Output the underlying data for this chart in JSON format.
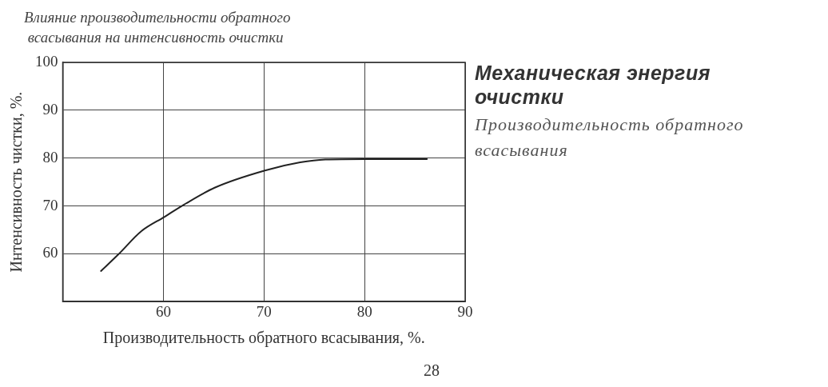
{
  "chart_data": {
    "type": "line",
    "title": "Влияние производительности обратного\n всасывания на интенсивность очистки",
    "xlabel": "Производительность обратного всасывания, %.",
    "ylabel": "Интенсивность чистки, %.",
    "x": [
      53.8,
      55.5,
      57.8,
      60.1,
      62,
      65.1,
      70.1,
      73.6,
      76.1,
      80,
      86.2
    ],
    "series": [
      {
        "color": "#222222",
        "values": [
          56.4,
          59.8,
          64.7,
          67.7,
          70.2,
          73.8,
          77.4,
          79.1,
          79.7,
          79.8,
          79.8
        ]
      }
    ],
    "xlim": [
      50,
      90
    ],
    "xticks": [
      60,
      70,
      80,
      90
    ],
    "ylim": [
      50,
      100
    ],
    "yticks": [
      60,
      70,
      80,
      90,
      100
    ],
    "grid": true,
    "legend": false,
    "marker": "none",
    "line_style": "solid",
    "annotations": [
      "Механическая  энергия очистки",
      "Производительность обратного всасывания",
      "28"
    ]
  }
}
